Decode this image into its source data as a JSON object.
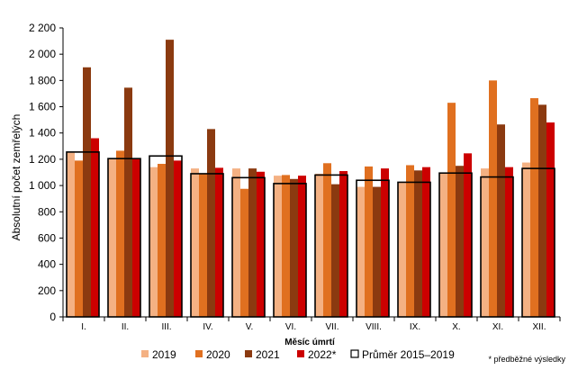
{
  "chart_data": {
    "type": "bar",
    "xlabel": "Měsíc úmrtí",
    "ylabel": "Absolutní počet zemřelých",
    "ylim": [
      0,
      2200
    ],
    "yticks": [
      0,
      200,
      400,
      600,
      800,
      1000,
      1200,
      1400,
      1600,
      1800,
      2000,
      2200
    ],
    "ytick_labels": [
      "0",
      "200",
      "400",
      "600",
      "800",
      "1 000",
      "1 200",
      "1 400",
      "1 600",
      "1 800",
      "2 000",
      "2 200"
    ],
    "categories": [
      "I.",
      "II.",
      "III.",
      "IV.",
      "V.",
      "VI.",
      "VII.",
      "VIII.",
      "IX.",
      "X.",
      "XI.",
      "XII."
    ],
    "series": [
      {
        "name": "2019",
        "color": "#f4b183",
        "values": [
          1250,
          1200,
          1140,
          1130,
          1130,
          1075,
          1090,
          990,
          1020,
          1090,
          1130,
          1175
        ]
      },
      {
        "name": "2020",
        "color": "#e07020",
        "values": [
          1190,
          1265,
          1165,
          1090,
          975,
          1080,
          1170,
          1145,
          1155,
          1630,
          1800,
          1665
        ]
      },
      {
        "name": "2021",
        "color": "#8b3a10",
        "values": [
          1900,
          1745,
          2110,
          1430,
          1130,
          1050,
          1010,
          990,
          1115,
          1150,
          1465,
          1615
        ]
      },
      {
        "name": "2022*",
        "color": "#cc0000",
        "values": [
          1360,
          1200,
          1190,
          1135,
          1105,
          1075,
          1110,
          1130,
          1140,
          1245,
          1140,
          1480
        ]
      }
    ],
    "average": {
      "name": "Průměr 2015–2019",
      "values": [
        1255,
        1205,
        1225,
        1090,
        1060,
        1015,
        1080,
        1040,
        1025,
        1095,
        1065,
        1130
      ]
    },
    "grid": false,
    "legend_position": "bottom",
    "footnote": "* předběžné výsledky"
  }
}
